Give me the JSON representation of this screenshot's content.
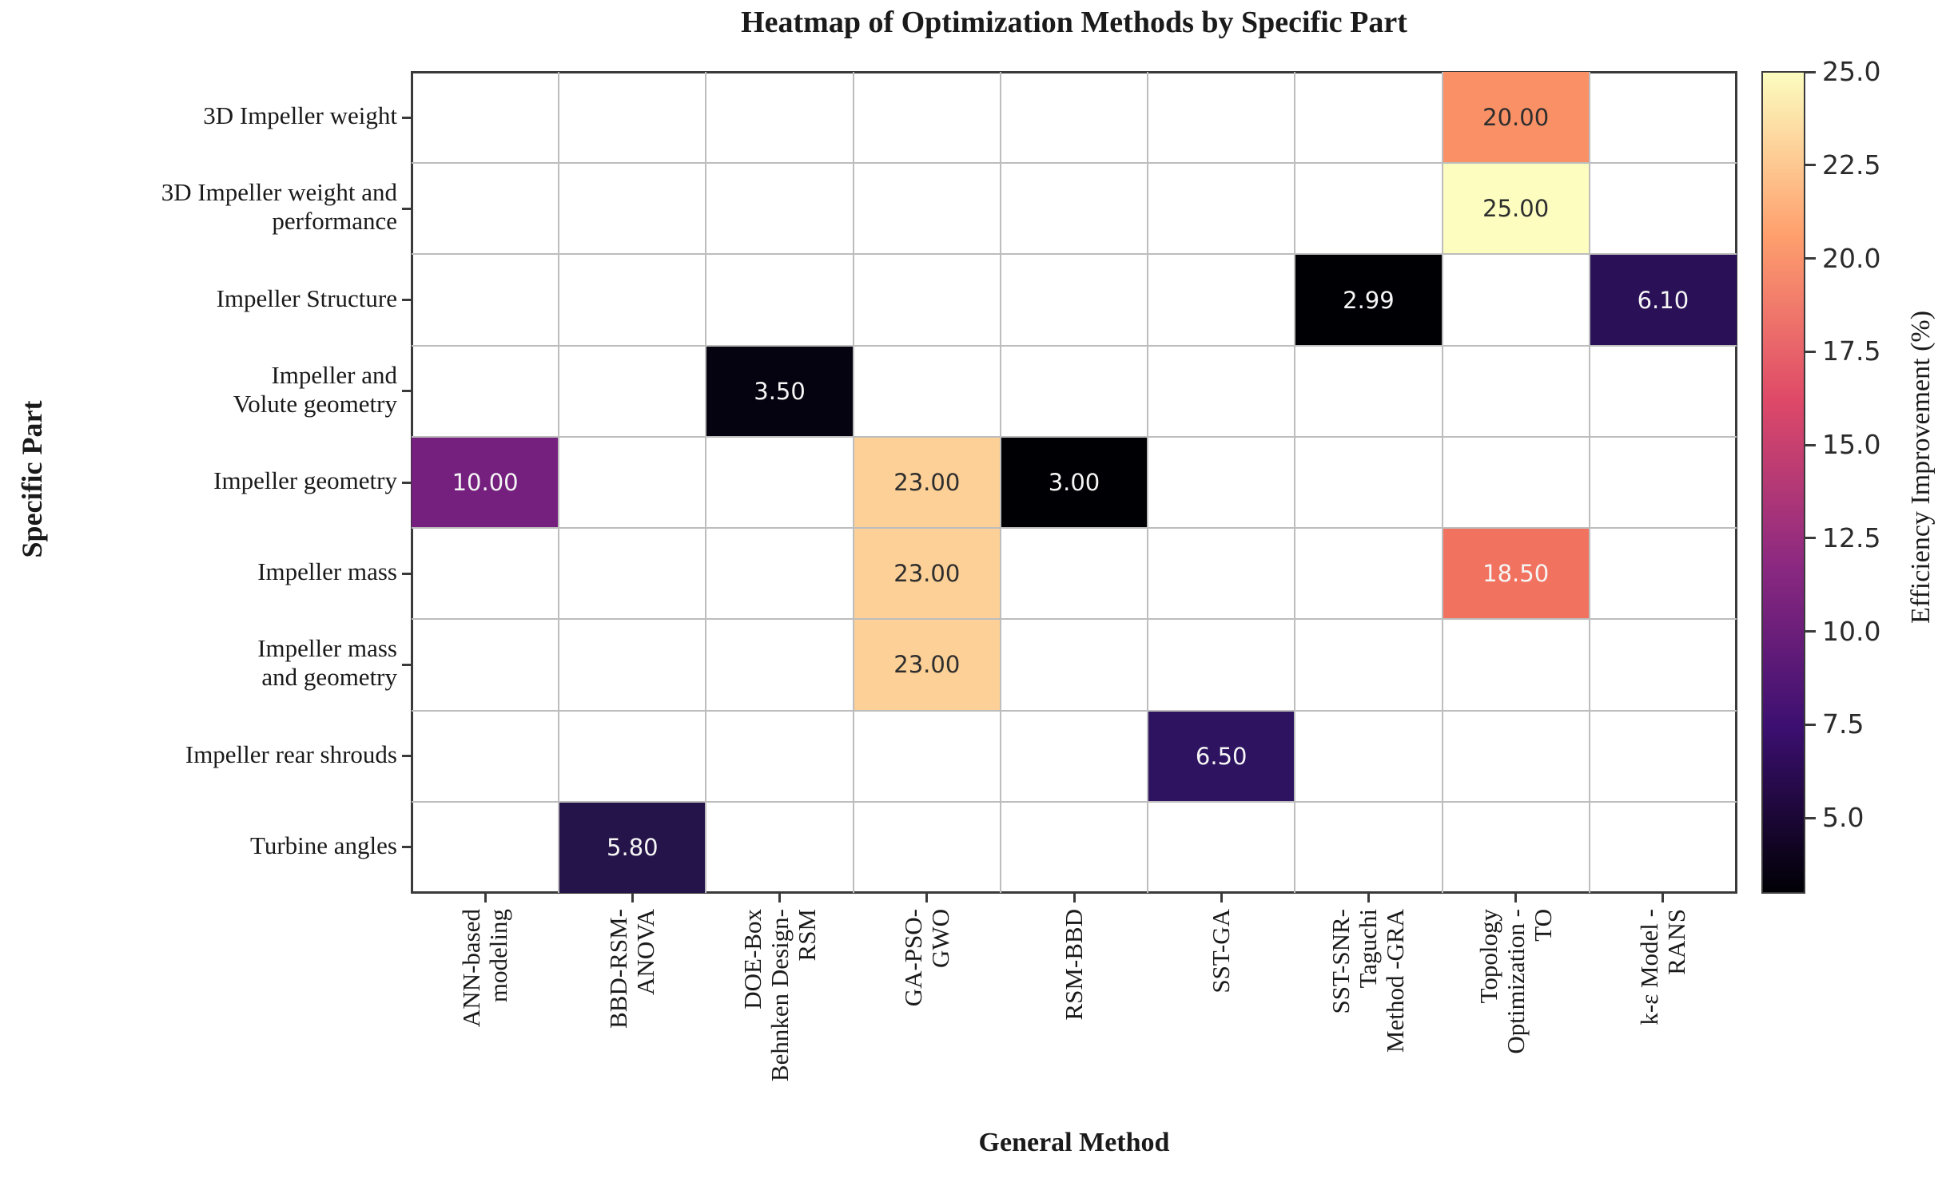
{
  "chart_data": {
    "type": "heatmap",
    "title": "Heatmap of Optimization Methods by Specific Part",
    "xlabel": "General Method",
    "ylabel": "Specific Part",
    "x_categories": [
      "ANN-based modeling",
      "BBD-RSM-ANOVA",
      "DOE-Box Behnken Design-RSM",
      "GA-PSO-GWO",
      "RSM-BBD",
      "SST-GA",
      "SST-SNR-Taguchi Method -GRA",
      "Topology Optimization - TO",
      "k-ε Model - RANS"
    ],
    "x_categories_lines": [
      [
        "ANN-based",
        "modeling"
      ],
      [
        "BBD-RSM-",
        "ANOVA"
      ],
      [
        "DOE-Box",
        "Behnken Design-",
        "RSM"
      ],
      [
        "GA-PSO-",
        "GWO"
      ],
      [
        "RSM-BBD"
      ],
      [
        "SST-GA"
      ],
      [
        "SST-SNR-",
        "Taguchi",
        "Method -GRA"
      ],
      [
        "Topology",
        "Optimization -",
        "TO"
      ],
      [
        "k-ε Model -",
        "RANS"
      ]
    ],
    "y_categories": [
      "3D Impeller weight",
      "3D Impeller weight and performance",
      "Impeller Structure",
      "Impeller and Volute geometry",
      "Impeller geometry",
      "Impeller mass",
      "Impeller mass and geometry",
      "Impeller rear shrouds",
      "Turbine angles"
    ],
    "y_categories_lines": [
      [
        "3D Impeller weight"
      ],
      [
        "3D Impeller weight and",
        "performance"
      ],
      [
        "Impeller Structure"
      ],
      [
        "Impeller and",
        "Volute geometry"
      ],
      [
        "Impeller geometry"
      ],
      [
        "Impeller mass"
      ],
      [
        "Impeller mass",
        "and geometry"
      ],
      [
        "Impeller rear shrouds"
      ],
      [
        "Turbine angles"
      ]
    ],
    "cells": [
      {
        "row": 0,
        "col": 7,
        "value": "20.00",
        "numeric": 20.0,
        "color": "#fa9166",
        "text_color": "#2e2e2e"
      },
      {
        "row": 1,
        "col": 7,
        "value": "25.00",
        "numeric": 25.0,
        "color": "#fcfdbf",
        "text_color": "#2e2e2e"
      },
      {
        "row": 2,
        "col": 6,
        "value": "2.99",
        "numeric": 2.99,
        "color": "#000004",
        "text_color": "#f5f5f5"
      },
      {
        "row": 2,
        "col": 8,
        "value": "6.10",
        "numeric": 6.1,
        "color": "#2a1157",
        "text_color": "#f5f5f5"
      },
      {
        "row": 3,
        "col": 2,
        "value": "3.50",
        "numeric": 3.5,
        "color": "#060311",
        "text_color": "#f5f5f5"
      },
      {
        "row": 4,
        "col": 0,
        "value": "10.00",
        "numeric": 10.0,
        "color": "#75207f",
        "text_color": "#f5f5f5"
      },
      {
        "row": 4,
        "col": 3,
        "value": "23.00",
        "numeric": 23.0,
        "color": "#fcd096",
        "text_color": "#2e2e2e"
      },
      {
        "row": 4,
        "col": 4,
        "value": "3.00",
        "numeric": 3.0,
        "color": "#000004",
        "text_color": "#f5f5f5"
      },
      {
        "row": 5,
        "col": 3,
        "value": "23.00",
        "numeric": 23.0,
        "color": "#fcd096",
        "text_color": "#2e2e2e"
      },
      {
        "row": 5,
        "col": 7,
        "value": "18.50",
        "numeric": 18.5,
        "color": "#f1735f",
        "text_color": "#f5f5f5"
      },
      {
        "row": 6,
        "col": 3,
        "value": "23.00",
        "numeric": 23.0,
        "color": "#fcd096",
        "text_color": "#2e2e2e"
      },
      {
        "row": 7,
        "col": 5,
        "value": "6.50",
        "numeric": 6.5,
        "color": "#2e1360",
        "text_color": "#f5f5f5"
      },
      {
        "row": 8,
        "col": 1,
        "value": "5.80",
        "numeric": 5.8,
        "color": "#251449",
        "text_color": "#f5f5f5"
      }
    ],
    "colorbar": {
      "label": "Efficiency Improvement (%)",
      "colormap": "magma",
      "vmin": 2.99,
      "vmax": 25.0,
      "ticks": [
        {
          "value": 25.0,
          "label": "25.0"
        },
        {
          "value": 22.5,
          "label": "22.5"
        },
        {
          "value": 20.0,
          "label": "20.0"
        },
        {
          "value": 17.5,
          "label": "17.5"
        },
        {
          "value": 15.0,
          "label": "15.0"
        },
        {
          "value": 12.5,
          "label": "12.5"
        },
        {
          "value": 10.0,
          "label": "10.0"
        },
        {
          "value": 7.5,
          "label": "7.5"
        },
        {
          "value": 5.0,
          "label": "5.0"
        }
      ],
      "gradient_stops": [
        {
          "pos": 0.0,
          "color": "#fcfdbf"
        },
        {
          "pos": 0.2,
          "color": "#fe9f6d"
        },
        {
          "pos": 0.4,
          "color": "#de4968"
        },
        {
          "pos": 0.6,
          "color": "#8c2981"
        },
        {
          "pos": 0.8,
          "color": "#3b0f70"
        },
        {
          "pos": 1.0,
          "color": "#000004"
        }
      ]
    },
    "colors": {
      "background": "#ffffff",
      "gridline": "#bdbdbd",
      "axis_border": "#3a3a3a",
      "text": "#1a1a1a"
    },
    "grid": true,
    "legend_position": "right-colorbar"
  }
}
